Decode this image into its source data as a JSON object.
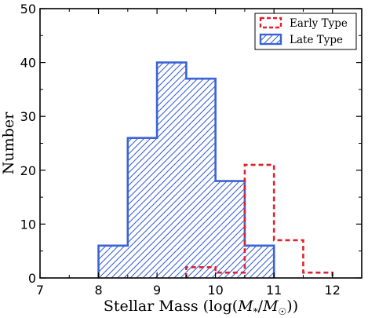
{
  "chart_data": {
    "type": "histogram",
    "xlabel_prefix": "Stellar Mass (log(",
    "xlabel_mass": "M",
    "xlabel_star": "*",
    "xlabel_sep": "/",
    "xlabel_sun": "☉",
    "xlabel_suffix": "))",
    "ylabel": "Number",
    "xlim": [
      7,
      12.5
    ],
    "ylim": [
      0,
      50
    ],
    "xticks": [
      7,
      8,
      9,
      10,
      11,
      12
    ],
    "yticks": [
      0,
      10,
      20,
      30,
      40,
      50
    ],
    "bin_width": 0.5,
    "legend_position": "upper right",
    "series": [
      {
        "name": "Early Type",
        "style": "dashed",
        "color": "#e0202c",
        "bin_edges": [
          9.5,
          10.0,
          10.5,
          11.0,
          11.5,
          12.0
        ],
        "counts": [
          2,
          1,
          21,
          7,
          1
        ]
      },
      {
        "name": "Late Type",
        "style": "hatched",
        "color": "#3b62d6",
        "bin_edges": [
          8.0,
          8.5,
          9.0,
          9.5,
          10.0,
          10.5,
          11.0
        ],
        "counts": [
          6,
          26,
          40,
          37,
          18,
          6
        ]
      }
    ]
  }
}
